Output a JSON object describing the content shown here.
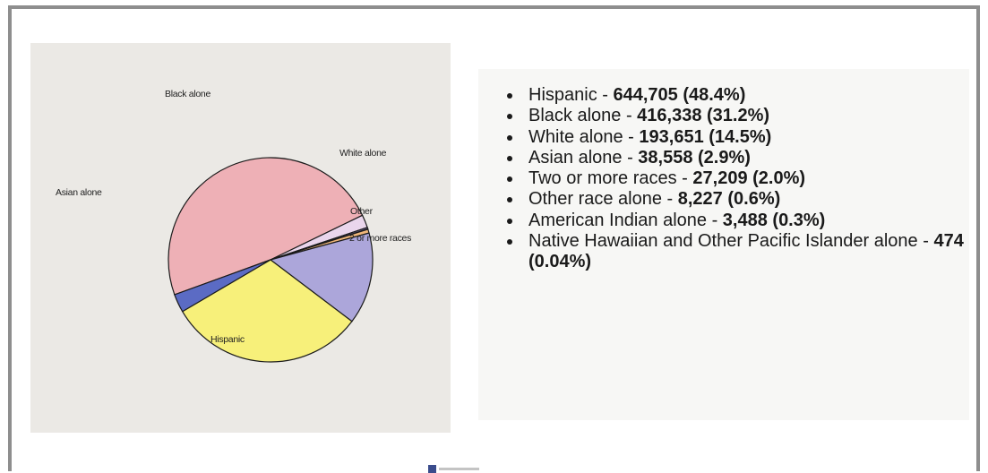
{
  "chart_data": {
    "type": "pie",
    "slices": [
      {
        "label": "Hispanic",
        "value": 644705,
        "color": "#eeb0b6"
      },
      {
        "label": "2 or more races",
        "value": 27209,
        "color": "#ead6ec"
      },
      {
        "label": "",
        "value": 3488,
        "color": "#7d6aa6"
      },
      {
        "label": "",
        "value": 474,
        "color": "#d2a060"
      },
      {
        "label": "Other",
        "value": 8227,
        "color": "#f0b77a"
      },
      {
        "label": "White alone",
        "value": 193651,
        "color": "#aca6da"
      },
      {
        "label": "Black alone",
        "value": 416338,
        "color": "#f7f07a"
      },
      {
        "label": "Asian alone",
        "value": 38558,
        "color": "#5b6bc4"
      }
    ]
  },
  "list": [
    {
      "label": "Hispanic - ",
      "value": "644,705 (48.4%)"
    },
    {
      "label": "Black alone - ",
      "value": "416,338 (31.2%)"
    },
    {
      "label": "White alone - ",
      "value": "193,651 (14.5%)"
    },
    {
      "label": "Asian alone - ",
      "value": "38,558 (2.9%)"
    },
    {
      "label": "Two or more races - ",
      "value": "27,209 (2.0%)"
    },
    {
      "label": "Other race alone - ",
      "value": "8,227 (0.6%)"
    },
    {
      "label": "American Indian alone - ",
      "value": "3,488 (0.3%)"
    },
    {
      "label": "Native Hawaiian and Other Pacific Islander alone - ",
      "value": "474 (0.04%)"
    }
  ]
}
